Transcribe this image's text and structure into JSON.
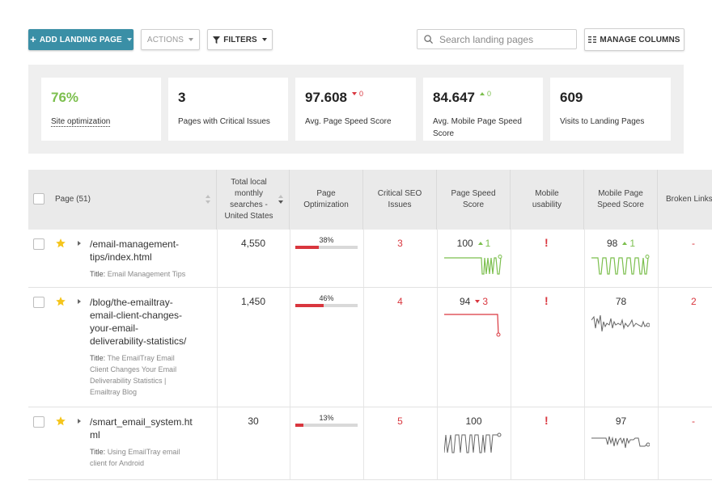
{
  "toolbar": {
    "add_label": "ADD LANDING PAGE",
    "actions_label": "ACTIONS",
    "filters_label": "FILTERS",
    "search_placeholder": "Search landing pages",
    "manage_label": "MANAGE COLUMNS"
  },
  "summary": {
    "site_optimization": {
      "value": "76%",
      "label": "Site optimization"
    },
    "critical": {
      "value": "3",
      "label": "Pages with Critical Issues"
    },
    "page_speed": {
      "value": "97.608",
      "delta": "0",
      "label": "Avg. Page Speed Score"
    },
    "mobile_speed": {
      "value": "84.647",
      "delta": "0",
      "label": "Avg. Mobile Page Speed Score"
    },
    "visits": {
      "value": "609",
      "label": "Visits to Landing Pages"
    }
  },
  "table": {
    "headers": {
      "page": "Page (51)",
      "searches": "Total local monthly searches - United States",
      "optimization": "Page Optimization",
      "critical": "Critical SEO Issues",
      "speed": "Page Speed Score",
      "mobile_usability": "Mobile usability",
      "mobile_speed": "Mobile Page Speed Score",
      "broken": "Broken Links"
    },
    "rows": [
      {
        "url": "/email-management-tips/index.html",
        "title_prefix": "Title:",
        "title": "Email Management Tips",
        "searches": "4,550",
        "optimization": "38%",
        "optimization_value": 38,
        "critical": "3",
        "speed": "100",
        "speed_delta": "1",
        "mobile_usability": "!",
        "mobile_speed": "98",
        "mobile_delta": "1",
        "broken": "-"
      },
      {
        "url": "/blog/the-emailtray-email-client-changes-your-email-deliverability-statistics/",
        "title_prefix": "Title:",
        "title": "The EmailTray Email Client Changes Your Email Deliverability Statistics | Emailtray Blog",
        "searches": "1,450",
        "optimization": "46%",
        "optimization_value": 46,
        "critical": "4",
        "speed": "94",
        "speed_delta": "3",
        "mobile_usability": "!",
        "mobile_speed": "78",
        "broken": "2"
      },
      {
        "url": "/smart_email_system.html",
        "title_prefix": "Title:",
        "title": "Using EmailTray email client for Android",
        "searches": "30",
        "optimization": "13%",
        "optimization_value": 13,
        "critical": "5",
        "speed": "100",
        "mobile_usability": "!",
        "mobile_speed": "97",
        "broken": "-"
      }
    ]
  },
  "colors": {
    "primary": "#3a8fa6",
    "good": "#7cbf4e",
    "bad": "#d9363e",
    "neutral_spark": "#666666"
  }
}
